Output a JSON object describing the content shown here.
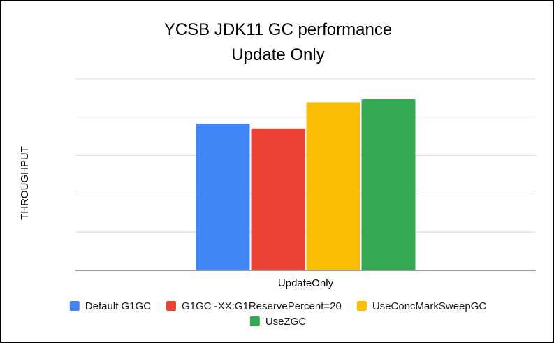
{
  "chart_data": {
    "type": "bar",
    "title": "YCSB JDK11 GC performance",
    "subtitle": "Update Only",
    "xlabel": "",
    "ylabel": "THROUGHPUT",
    "categories": [
      "UpdateOnly"
    ],
    "series": [
      {
        "name": "Default G1GC",
        "values": [
          3.83
        ],
        "color": "#4285f4"
      },
      {
        "name": "G1GC -XX:G1ReservePercent=20",
        "values": [
          3.71
        ],
        "color": "#ea4335"
      },
      {
        "name": "UseConcMarkSweepGC",
        "values": [
          4.39
        ],
        "color": "#fbbc04"
      },
      {
        "name": "UseZGC",
        "values": [
          4.47
        ],
        "color": "#34a853"
      }
    ],
    "ylim": [
      0,
      5
    ],
    "yticks": [
      0,
      1,
      2,
      3,
      4,
      5
    ],
    "grid": true,
    "legend_position": "bottom"
  }
}
